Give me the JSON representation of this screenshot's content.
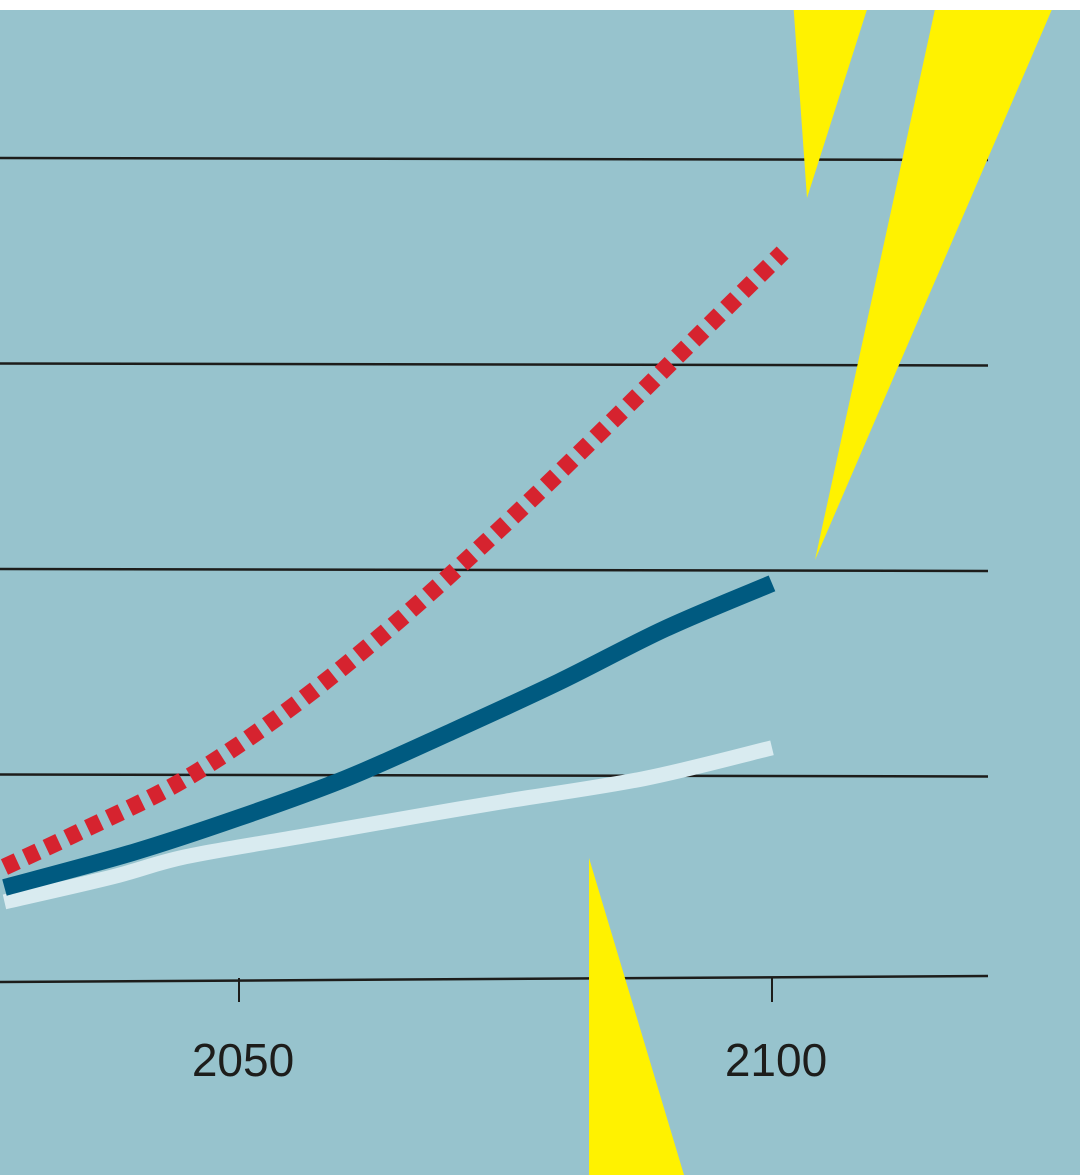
{
  "colors": {
    "background": "#97c3cd",
    "gridline": "#1d1d1b",
    "lightning": "#fff200",
    "series_red": "#d6232f",
    "series_blue": "#005a80",
    "series_light": "#d9ebf0"
  },
  "chart_data": {
    "type": "line",
    "title": "",
    "xlabel": "",
    "ylabel": "",
    "x_tick_labels": [
      "2050",
      "2100"
    ],
    "x_ticks": [
      2050,
      2100
    ],
    "xlim": [
      2028,
      2120
    ],
    "ylim": [
      0,
      4
    ],
    "grid": true,
    "gridline_values": [
      1,
      2,
      3,
      4
    ],
    "series": [
      {
        "style": "dotted",
        "color": "#d6232f",
        "x": [
          2028,
          2035,
          2045,
          2055,
          2065,
          2075,
          2085,
          2092,
          2101
        ],
        "y": [
          0.55,
          0.72,
          0.98,
          1.33,
          1.75,
          2.22,
          2.72,
          3.08,
          3.54
        ]
      },
      {
        "style": "solid",
        "color": "#005a80",
        "x": [
          2028,
          2040,
          2050,
          2060,
          2070,
          2080,
          2090,
          2100
        ],
        "y": [
          0.45,
          0.62,
          0.79,
          0.98,
          1.21,
          1.45,
          1.71,
          1.93
        ]
      },
      {
        "style": "solid",
        "color": "#d9ebf0",
        "x": [
          2028,
          2038,
          2045,
          2056,
          2067,
          2075,
          2088,
          2100
        ],
        "y": [
          0.38,
          0.5,
          0.6,
          0.7,
          0.8,
          0.87,
          0.98,
          1.13
        ]
      }
    ]
  }
}
